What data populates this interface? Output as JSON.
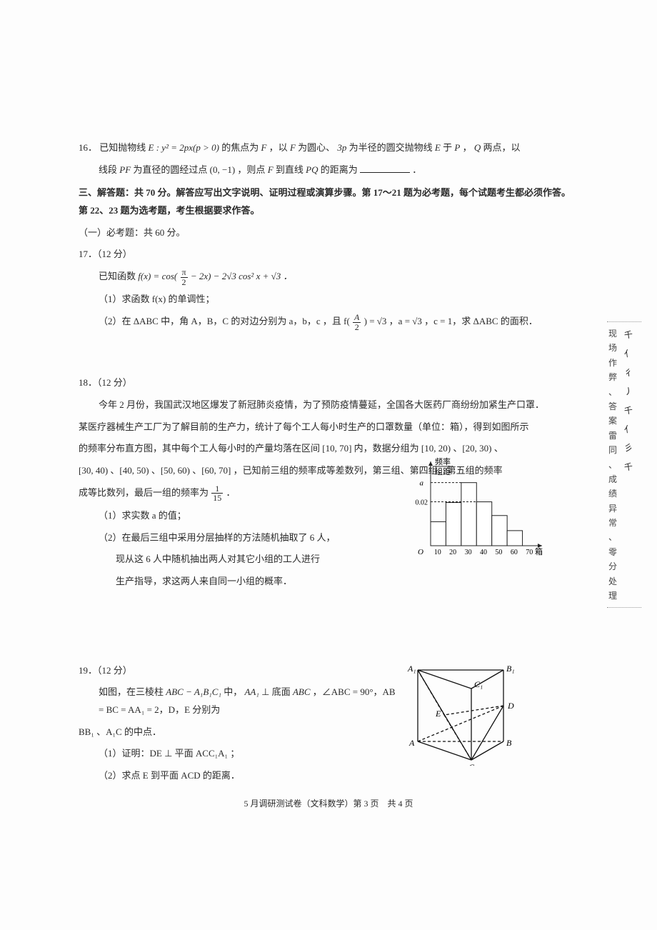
{
  "q16": {
    "num": "16．",
    "text_a": "已知抛物线 ",
    "expr1": "E : y² = 2px(p > 0)",
    "text_b": " 的焦点为 ",
    "F": "F",
    "text_c": " ，以 ",
    "text_d": " 为圆心、",
    "r": "3p",
    "text_e": " 为半径的圆交抛物线 ",
    "E": "E",
    "text_f": " 于 ",
    "P": "P",
    "comma": "，",
    "Q": "Q",
    "text_g": " 两点，以",
    "line2_a": "线段 ",
    "PF": "PF",
    "line2_b": " 为直径的圆经过点 ",
    "pt": "(0, −1)",
    "line2_c": " ，则点 ",
    "line2_d": " 到直线 ",
    "PQ": "PQ",
    "line2_e": " 的距离为",
    "period": "．"
  },
  "section3": {
    "title": "三、解答题：共 70 分。解答应写出文字说明、证明过程或演算步骤。第 17～21 题为必考题，每个试题考生都必须作答。第 22、23 题为选考题，考生根据要求作答。",
    "sub": "（一）必考题：共 60 分。"
  },
  "q17": {
    "num": "17．（12 分）",
    "l1_a": "已知函数 ",
    "l1_fx": "f(x) = cos(",
    "frac1_num": "π",
    "frac1_den": "2",
    "l1_b": " − 2x) − 2√3 cos² x + √3 ．",
    "p1": "（1）求函数 f(x) 的单调性；",
    "p2_a": "（2）在 ΔABC 中，角 A，B，C 的对边分别为 a，b，c ，且 f(",
    "frac2_num": "A",
    "frac2_den": "2",
    "p2_b": ") = √3 ，a = √3 ，c = 1，求 ΔABC 的面积．"
  },
  "q18": {
    "num": "18．（12 分）",
    "l1": "今年 2 月份，我国武汉地区爆发了新冠肺炎疫情，为了预防疫情蔓延，全国各大医药厂商纷纷加紧生产口罩．",
    "l2": "某医疗器械生产工厂为了解目前的生产力，统计了每个工人每小时生产的口罩数量（单位：箱），得到如图所示",
    "l3": "的频率分布直方图，其中每个工人每小时的产量均落在区间 [10, 70] 内，数据分组为 [10, 20) 、[20, 30) 、",
    "l4_a": "[30, 40) 、[40, 50) 、[50, 60) 、[60, 70] ，已知前三组的频率成等差数列，第三组、第四组、第五组的频率",
    "l5_a": "成等比数列，最后一组的频率为",
    "frac_num": "1",
    "frac_den": "15",
    "l5_b": " ．",
    "p1": "（1）求实数 a 的值；",
    "p2_l1": "（2）在最后三组中采用分层抽样的方法随机抽取了 6 人，",
    "p2_l2": "现从这 6 人中随机抽出两人对其它小组的工人进行",
    "p2_l3": "生产指导，求这两人来自同一小组的概率．"
  },
  "q19": {
    "num": "19．（12 分）",
    "l1_a": "如图，在三棱柱 ",
    "prism": "ABC − A₁B₁C₁",
    "l1_b": " 中，",
    "AA1": "AA₁",
    "l1_c": " ⊥ 底面 ",
    "ABC": "ABC",
    "l1_d": " ，∠ABC = 90°，AB = BC = AA₁ = 2，D，E 分别为",
    "l2": "BB₁ 、A₁C 的中点．",
    "p1": "（1）证明：DE ⊥ 平面 ACC₁A₁ ；",
    "p2": "（2）求点 E 到平面 ACD 的距离．"
  },
  "chart": {
    "type": "histogram",
    "ylabel_top": "频率",
    "ylabel_bot": "组距",
    "xlabel": "箱",
    "origin": "O",
    "xticks": [
      "10",
      "20",
      "30",
      "40",
      "50",
      "60",
      "70"
    ],
    "ytick_labels": {
      "a": "a",
      "v": "0.02"
    },
    "bars": [
      {
        "x": 10,
        "h": 0.35
      },
      {
        "x": 20,
        "h": 0.63
      },
      {
        "x": 30,
        "h": 0.92
      },
      {
        "x": 40,
        "h": 0.64
      },
      {
        "x": 50,
        "h": 0.44
      },
      {
        "x": 60,
        "h": 0.22
      }
    ],
    "axis_color": "#222",
    "bar_stroke": "#222",
    "bar_fill": "#ffffff",
    "dash_color": "#222"
  },
  "prism": {
    "labels": {
      "A1": "A₁",
      "B1": "B₁",
      "C1": "C₁",
      "A": "A",
      "B": "B",
      "C": "C",
      "D": "D",
      "E": "E"
    },
    "stroke": "#111"
  },
  "margin": {
    "textLeft": [
      "现",
      "场",
      "作",
      "弊",
      "、",
      "答",
      "案",
      "雷",
      "同",
      "、",
      "成",
      "绩",
      "异",
      "常",
      "、",
      "零",
      "分",
      "处",
      "理"
    ],
    "scribbles": [
      "千",
      "亻",
      "彳",
      "丿",
      "千",
      "亻",
      "彡",
      "千"
    ]
  },
  "footer": "5 月调研测试卷（文科数学）第 3 页　共 4 页"
}
